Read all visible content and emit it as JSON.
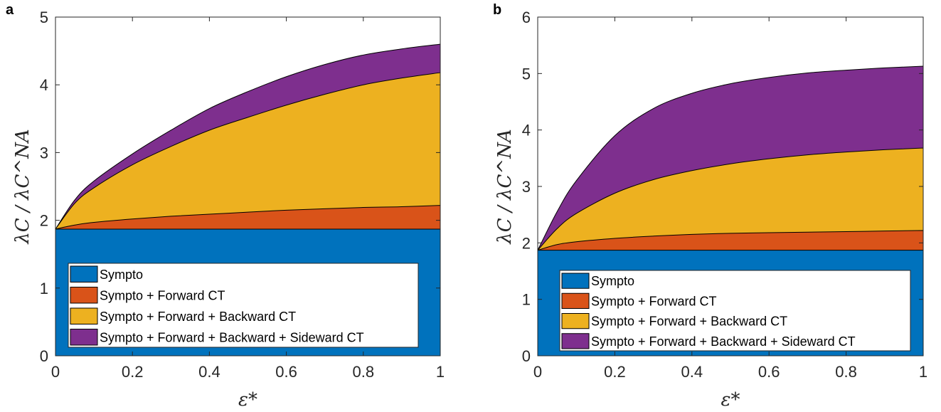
{
  "chart_data": [
    {
      "panel_label": "a",
      "type": "area",
      "stacked": true,
      "x": [
        0,
        0.05,
        0.1,
        0.2,
        0.3,
        0.4,
        0.5,
        0.6,
        0.7,
        0.8,
        0.9,
        1.0
      ],
      "series": [
        {
          "name": "Sympto",
          "color": "#0072BD",
          "y": [
            1.87,
            1.87,
            1.87,
            1.87,
            1.87,
            1.87,
            1.87,
            1.87,
            1.87,
            1.87,
            1.87,
            1.87
          ]
        },
        {
          "name": "Sympto + Forward CT",
          "color": "#D95319",
          "y": [
            1.87,
            1.93,
            1.97,
            2.02,
            2.06,
            2.09,
            2.12,
            2.15,
            2.17,
            2.19,
            2.2,
            2.22
          ]
        },
        {
          "name": "Sympto + Forward + Backward CT",
          "color": "#EDB120",
          "y": [
            1.87,
            2.25,
            2.48,
            2.82,
            3.09,
            3.33,
            3.52,
            3.7,
            3.86,
            4.0,
            4.1,
            4.18
          ]
        },
        {
          "name": "Sympto + Forward + Backward + Sideward CT",
          "color": "#7E2F8E",
          "y": [
            1.87,
            2.3,
            2.58,
            2.98,
            3.33,
            3.65,
            3.9,
            4.12,
            4.3,
            4.44,
            4.53,
            4.6
          ]
        }
      ],
      "xlim": [
        0,
        1
      ],
      "ylim": [
        0,
        5
      ],
      "x_ticks": [
        "0",
        "0.2",
        "0.4",
        "0.6",
        "0.8",
        "1"
      ],
      "y_ticks": [
        "0",
        "1",
        "2",
        "3",
        "4",
        "5"
      ],
      "xlabel": "ε*",
      "ylabel": "λC / λC^NA",
      "legend_position": "bottom"
    },
    {
      "panel_label": "b",
      "type": "area",
      "stacked": true,
      "x": [
        0,
        0.05,
        0.1,
        0.2,
        0.3,
        0.4,
        0.5,
        0.6,
        0.7,
        0.8,
        0.9,
        1.0
      ],
      "series": [
        {
          "name": "Sympto",
          "color": "#0072BD",
          "y": [
            1.87,
            1.87,
            1.87,
            1.87,
            1.87,
            1.87,
            1.87,
            1.87,
            1.87,
            1.87,
            1.87,
            1.87
          ]
        },
        {
          "name": "Sympto + Forward CT",
          "color": "#D95319",
          "y": [
            1.87,
            1.97,
            2.02,
            2.08,
            2.12,
            2.15,
            2.17,
            2.18,
            2.19,
            2.2,
            2.21,
            2.22
          ]
        },
        {
          "name": "Sympto + Forward + Backward CT",
          "color": "#EDB120",
          "y": [
            1.87,
            2.25,
            2.52,
            2.88,
            3.12,
            3.28,
            3.4,
            3.49,
            3.56,
            3.61,
            3.65,
            3.68
          ]
        },
        {
          "name": "Sympto + Forward + Backward + Sideward CT",
          "color": "#7E2F8E",
          "y": [
            1.87,
            2.55,
            3.1,
            3.9,
            4.38,
            4.65,
            4.82,
            4.93,
            5.01,
            5.06,
            5.1,
            5.13
          ]
        }
      ],
      "xlim": [
        0,
        1
      ],
      "ylim": [
        0,
        6
      ],
      "x_ticks": [
        "0",
        "0.2",
        "0.4",
        "0.6",
        "0.8",
        "1"
      ],
      "y_ticks": [
        "0",
        "1",
        "2",
        "3",
        "4",
        "5",
        "6"
      ],
      "xlabel": "ε*",
      "ylabel": "λC / λC^NA",
      "legend_position": "bottom"
    }
  ]
}
